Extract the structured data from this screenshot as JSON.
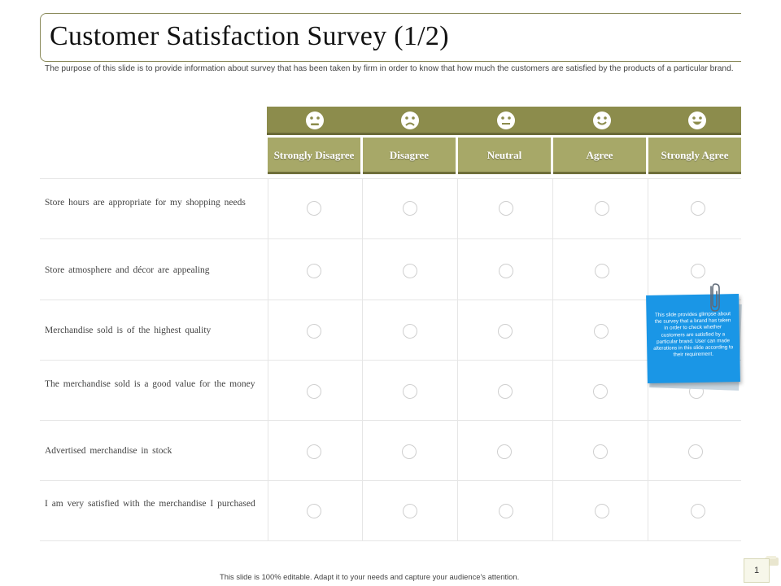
{
  "slide": {
    "title": "Customer Satisfaction Survey (1/2)",
    "subtitle": "The purpose of this slide is to provide information about survey that has been taken by firm in order to know that how much the customers are satisfied by the products of a particular brand.",
    "footer": "This slide is 100% editable. Adapt it to your needs and capture your audience's attention.",
    "page_number": "1"
  },
  "scale": {
    "labels": [
      "Strongly Disagree",
      "Disagree",
      "Neutral",
      "Agree",
      "Strongly Agree"
    ],
    "icons": [
      "very-sad-face-icon",
      "sad-face-icon",
      "neutral-face-icon",
      "happy-face-icon",
      "very-happy-face-icon"
    ]
  },
  "questions": [
    "Store hours are appropriate  for my shopping  needs",
    "Store atmosphere  and décor  are  appealing",
    "Merchandise  sold  is of the highest  quality",
    "The merchandise  sold is a good  value for the money",
    "Advertised  merchandise  in stock",
    "I am very satisfied with the merchandise  I purchased"
  ],
  "note": {
    "text": "This slide provides glimpse about the survey that a brand has taken in order to check whether customers are satisfied by a particular brand. User can made alterations in this slide according to their requirement."
  },
  "colors": {
    "band": "#8c8c4c",
    "header": "#a7a868",
    "note": "#1a96e6"
  }
}
